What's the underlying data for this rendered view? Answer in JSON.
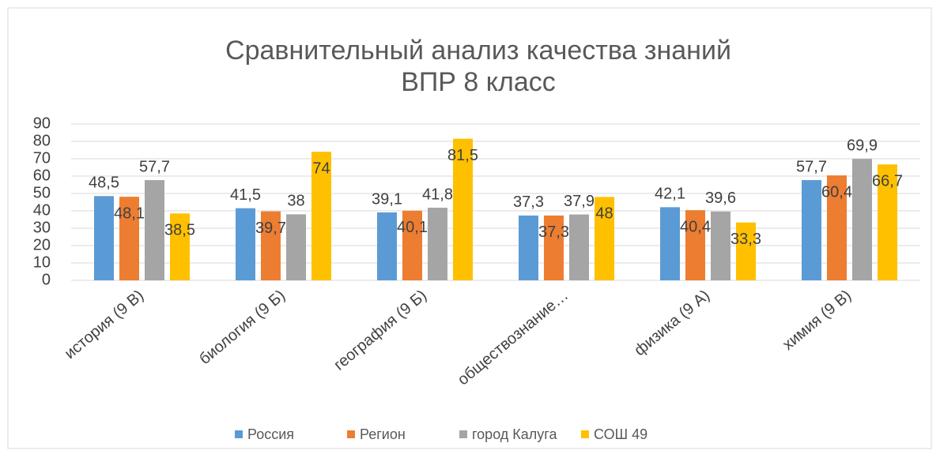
{
  "chart_data": {
    "type": "bar",
    "title": [
      "Сравнительный анализ качества знаний",
      "ВПР 8 класс"
    ],
    "categories": [
      "история (9 В)",
      "биология (9 Б)",
      "география (9 Б)",
      "обществознание…",
      "физика (9 А)",
      "химия (9 В)"
    ],
    "series": [
      {
        "name": "Россия",
        "color": "#5b9bd5",
        "values": [
          48.5,
          41.5,
          39.1,
          37.3,
          42.1,
          57.7
        ],
        "value_labels": [
          "48,5",
          "41,5",
          "39,1",
          "37,3",
          "42,1",
          "57,7"
        ]
      },
      {
        "name": "Регион",
        "color": "#ed7d31",
        "values": [
          48.1,
          39.7,
          40.1,
          37.3,
          40.4,
          60.4
        ],
        "value_labels": [
          "48,1",
          "39,7",
          "40,1",
          "37,3",
          "40,4",
          "60,4"
        ]
      },
      {
        "name": "город Калуга",
        "color": "#a5a5a5",
        "values": [
          57.7,
          38,
          41.8,
          37.9,
          39.6,
          69.9
        ],
        "value_labels": [
          "57,7",
          "38",
          "41,8",
          "37,9",
          "39,6",
          "69,9"
        ]
      },
      {
        "name": "СОШ 49",
        "color": "#ffc000",
        "values": [
          38.5,
          74,
          81.5,
          48,
          33.3,
          66.7
        ],
        "value_labels": [
          "38,5",
          "74",
          "81,5",
          "48",
          "33,3",
          "66,7"
        ]
      }
    ],
    "ylim": [
      0,
      90
    ],
    "yticks": [
      0,
      10,
      20,
      30,
      40,
      50,
      60,
      70,
      80,
      90
    ],
    "grid": true,
    "legend": "bottom"
  }
}
